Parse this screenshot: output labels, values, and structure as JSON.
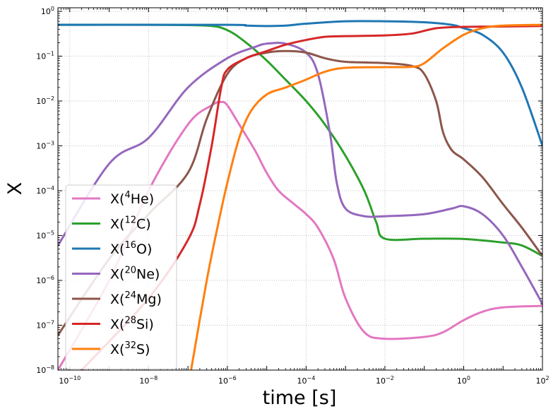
{
  "chart_data": {
    "type": "line",
    "xlabel": "time [s]",
    "ylabel": "X",
    "x_scale": "log",
    "y_scale": "log",
    "xlim": [
      5e-11,
      100
    ],
    "ylim": [
      1e-08,
      1.2
    ],
    "grid": true,
    "legend_position": "lower-left",
    "x_ticks": [
      {
        "value": 1e-10,
        "base": "10",
        "exp": "−10"
      },
      {
        "value": 1e-08,
        "base": "10",
        "exp": "−8"
      },
      {
        "value": 1e-06,
        "base": "10",
        "exp": "−6"
      },
      {
        "value": 0.0001,
        "base": "10",
        "exp": "−4"
      },
      {
        "value": 0.01,
        "base": "10",
        "exp": "−2"
      },
      {
        "value": 1,
        "base": "10",
        "exp": "0"
      },
      {
        "value": 100,
        "base": "10",
        "exp": "2"
      }
    ],
    "y_ticks": [
      {
        "value": 1e-08,
        "base": "10",
        "exp": "−8"
      },
      {
        "value": 1e-07,
        "base": "10",
        "exp": "−7"
      },
      {
        "value": 1e-06,
        "base": "10",
        "exp": "−6"
      },
      {
        "value": 1e-05,
        "base": "10",
        "exp": "−5"
      },
      {
        "value": 0.0001,
        "base": "10",
        "exp": "−4"
      },
      {
        "value": 0.001,
        "base": "10",
        "exp": "−3"
      },
      {
        "value": 0.01,
        "base": "10",
        "exp": "−2"
      },
      {
        "value": 0.1,
        "base": "10",
        "exp": "−1"
      },
      {
        "value": 1,
        "base": "10",
        "exp": "0"
      }
    ],
    "series": [
      {
        "name": "X(4He)",
        "label_prefix": "X(",
        "label_sup": "4",
        "label_main": "He)",
        "color": "#e377c2",
        "points": [
          [
            5e-11,
            1e-08
          ],
          [
            1e-09,
            1e-06
          ],
          [
            1e-08,
            0.0001
          ],
          [
            1e-07,
            0.003
          ],
          [
            4e-07,
            0.008
          ],
          [
            7e-07,
            0.0095
          ],
          [
            1e-06,
            0.008
          ],
          [
            2e-06,
            0.003
          ],
          [
            5e-06,
            0.0008
          ],
          [
            1e-05,
            0.00025
          ],
          [
            2e-05,
            0.0001
          ],
          [
            5e-05,
            5e-05
          ],
          [
            0.0001,
            3e-05
          ],
          [
            0.0002,
            1.5e-05
          ],
          [
            0.0005,
            3e-06
          ],
          [
            0.001,
            4e-07
          ],
          [
            0.003,
            7e-08
          ],
          [
            0.01,
            5e-08
          ],
          [
            0.1,
            5.5e-08
          ],
          [
            0.3,
            7e-08
          ],
          [
            1,
            1.3e-07
          ],
          [
            3,
            2e-07
          ],
          [
            10,
            2.5e-07
          ],
          [
            100,
            2.7e-07
          ]
        ]
      },
      {
        "name": "X(12C)",
        "label_prefix": "X(",
        "label_sup": "12",
        "label_main": "C)",
        "color": "#2ca02c",
        "points": [
          [
            5e-11,
            0.5
          ],
          [
            1e-08,
            0.5
          ],
          [
            3e-07,
            0.48
          ],
          [
            1e-06,
            0.38
          ],
          [
            3e-06,
            0.2
          ],
          [
            1e-05,
            0.08
          ],
          [
            3e-05,
            0.03
          ],
          [
            0.0001,
            0.01
          ],
          [
            0.0003,
            0.003
          ],
          [
            0.001,
            0.0006
          ],
          [
            0.003,
            0.0001
          ],
          [
            0.006,
            2e-05
          ],
          [
            0.01,
            8.5e-06
          ],
          [
            0.1,
            8.5e-06
          ],
          [
            1,
            8.4e-06
          ],
          [
            10,
            7e-06
          ],
          [
            30,
            6e-06
          ],
          [
            100,
            3.5e-06
          ]
        ]
      },
      {
        "name": "X(16O)",
        "label_prefix": "X(",
        "label_sup": "16",
        "label_main": "O)",
        "color": "#1f77b4",
        "points": [
          [
            5e-11,
            0.5
          ],
          [
            1e-06,
            0.5
          ],
          [
            3e-06,
            0.48
          ],
          [
            1e-05,
            0.47
          ],
          [
            3e-05,
            0.48
          ],
          [
            0.0001,
            0.53
          ],
          [
            0.001,
            0.6
          ],
          [
            0.01,
            0.6
          ],
          [
            0.1,
            0.57
          ],
          [
            0.5,
            0.5
          ],
          [
            1,
            0.42
          ],
          [
            3,
            0.3
          ],
          [
            10,
            0.12
          ],
          [
            30,
            0.02
          ],
          [
            100,
            0.001
          ]
        ]
      },
      {
        "name": "X(20Ne)",
        "label_prefix": "X(",
        "label_sup": "20",
        "label_main": "Ne)",
        "color": "#9467bd",
        "points": [
          [
            5e-11,
            6e-06
          ],
          [
            1e-09,
            0.0004
          ],
          [
            1e-08,
            0.0015
          ],
          [
            1e-07,
            0.02
          ],
          [
            1e-06,
            0.09
          ],
          [
            5e-06,
            0.16
          ],
          [
            1e-05,
            0.19
          ],
          [
            3e-05,
            0.19
          ],
          [
            0.0001,
            0.12
          ],
          [
            0.0002,
            0.04
          ],
          [
            0.0004,
            0.002
          ],
          [
            0.0006,
            0.00015
          ],
          [
            0.001,
            4e-05
          ],
          [
            0.003,
            2.7e-05
          ],
          [
            0.01,
            2.7e-05
          ],
          [
            0.1,
            3e-05
          ],
          [
            0.5,
            4e-05
          ],
          [
            1,
            4.5e-05
          ],
          [
            3,
            3e-05
          ],
          [
            10,
            1e-05
          ],
          [
            30,
            2e-06
          ],
          [
            100,
            3e-07
          ]
        ]
      },
      {
        "name": "X(24Mg)",
        "label_prefix": "X(",
        "label_sup": "24",
        "label_main": "Mg)",
        "color": "#8c564b",
        "points": [
          [
            5e-11,
            6e-08
          ],
          [
            1e-09,
            3e-06
          ],
          [
            1e-08,
            3e-05
          ],
          [
            1e-07,
            0.00025
          ],
          [
            3e-07,
            0.004
          ],
          [
            1e-06,
            0.04
          ],
          [
            3e-06,
            0.09
          ],
          [
            1e-05,
            0.12
          ],
          [
            3e-05,
            0.13
          ],
          [
            0.0001,
            0.12
          ],
          [
            0.0003,
            0.09
          ],
          [
            0.001,
            0.075
          ],
          [
            0.01,
            0.07
          ],
          [
            0.05,
            0.06
          ],
          [
            0.1,
            0.04
          ],
          [
            0.2,
            0.01
          ],
          [
            0.3,
            0.002
          ],
          [
            0.5,
            0.0008
          ],
          [
            1,
            0.0005
          ],
          [
            3,
            0.0002
          ],
          [
            10,
            5e-05
          ],
          [
            30,
            1.5e-05
          ],
          [
            100,
            3.5e-06
          ]
        ]
      },
      {
        "name": "X(28Si)",
        "label_prefix": "X(",
        "label_sup": "28",
        "label_main": "Si)",
        "color": "#d62728",
        "points": [
          [
            2e-10,
            1e-08
          ],
          [
            1e-08,
            4e-07
          ],
          [
            1e-07,
            8e-06
          ],
          [
            2e-07,
            5e-05
          ],
          [
            4e-07,
            0.001
          ],
          [
            7e-07,
            0.02
          ],
          [
            1e-06,
            0.05
          ],
          [
            3e-06,
            0.09
          ],
          [
            1e-05,
            0.13
          ],
          [
            3e-05,
            0.18
          ],
          [
            0.0001,
            0.23
          ],
          [
            0.0003,
            0.27
          ],
          [
            0.001,
            0.28
          ],
          [
            0.01,
            0.29
          ],
          [
            0.05,
            0.32
          ],
          [
            0.2,
            0.42
          ],
          [
            1,
            0.45
          ],
          [
            10,
            0.46
          ],
          [
            100,
            0.47
          ]
        ]
      },
      {
        "name": "X(32S)",
        "label_prefix": "X(",
        "label_sup": "32",
        "label_main": "S)",
        "color": "#ff7f0e",
        "points": [
          [
            1.2e-07,
            1e-08
          ],
          [
            3e-07,
            1e-06
          ],
          [
            6e-07,
            2e-05
          ],
          [
            1e-06,
            0.00015
          ],
          [
            2e-06,
            0.0015
          ],
          [
            4e-06,
            0.006
          ],
          [
            1e-05,
            0.014
          ],
          [
            3e-05,
            0.02
          ],
          [
            0.0001,
            0.03
          ],
          [
            0.0003,
            0.045
          ],
          [
            0.001,
            0.055
          ],
          [
            0.01,
            0.057
          ],
          [
            0.05,
            0.058
          ],
          [
            0.1,
            0.07
          ],
          [
            0.3,
            0.15
          ],
          [
            1,
            0.3
          ],
          [
            3,
            0.42
          ],
          [
            10,
            0.48
          ],
          [
            100,
            0.5
          ]
        ]
      }
    ]
  }
}
